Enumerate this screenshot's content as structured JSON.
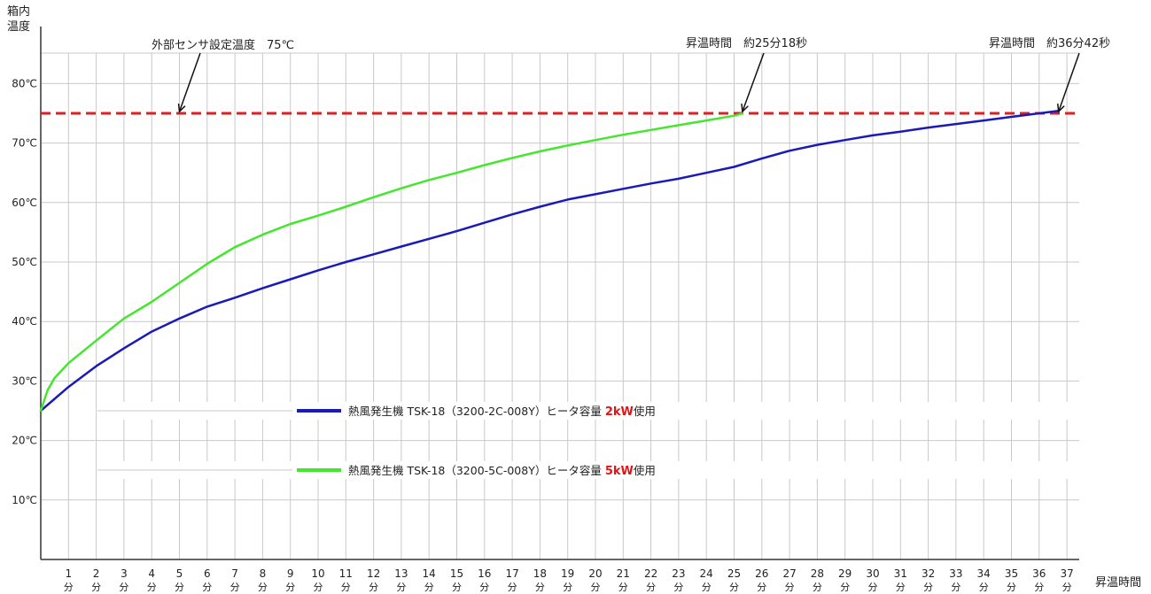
{
  "chart_data": {
    "type": "line",
    "ylabel_lines": [
      "箱内",
      "温度"
    ],
    "xlabel": "昇温時間",
    "y_unit": "℃",
    "x_unit": "分",
    "xlim": [
      0,
      37.5
    ],
    "ylim": [
      0,
      85
    ],
    "y_ticks": [
      10,
      20,
      30,
      40,
      50,
      60,
      70,
      80
    ],
    "y_tick_labels": [
      "10℃",
      "20℃",
      "30℃",
      "40℃",
      "50℃",
      "60℃",
      "70℃",
      "80℃"
    ],
    "x_ticks": [
      1,
      2,
      3,
      4,
      5,
      6,
      7,
      8,
      9,
      10,
      11,
      12,
      13,
      14,
      15,
      16,
      17,
      18,
      19,
      20,
      21,
      22,
      23,
      24,
      25,
      26,
      27,
      28,
      29,
      30,
      31,
      32,
      33,
      34,
      35,
      36,
      37
    ],
    "grid": true,
    "reference_line": {
      "y": 75,
      "color": "#e02020",
      "style": "dashed"
    },
    "annotations": [
      {
        "text": "外部センサ設定温度　75℃",
        "points_to": [
          5,
          75
        ]
      },
      {
        "text": "昇温時間　約25分18秒",
        "points_to": [
          25.3,
          75
        ]
      },
      {
        "text": "昇温時間　約36分42秒",
        "points_to": [
          36.7,
          75
        ]
      }
    ],
    "series": [
      {
        "label_prefix": "熱風発生機 TSK-18（3200-2C-008Y）ヒータ容量 ",
        "label_power": "2kW",
        "label_suffix": "使用",
        "color": "#1a1ab8",
        "x": [
          0,
          1,
          2,
          3,
          4,
          5,
          6,
          7,
          8,
          9,
          10,
          11,
          12,
          13,
          14,
          15,
          16,
          17,
          18,
          19,
          20,
          21,
          22,
          23,
          24,
          25,
          26,
          27,
          28,
          29,
          30,
          31,
          32,
          33,
          34,
          35,
          36,
          36.7
        ],
        "y": [
          25,
          29,
          32.5,
          35.5,
          38.3,
          40.5,
          42.5,
          44,
          45.6,
          47.1,
          48.6,
          50,
          51.3,
          52.6,
          53.9,
          55.2,
          56.6,
          58,
          59.3,
          60.5,
          61.4,
          62.3,
          63.2,
          64,
          65,
          66,
          67.4,
          68.7,
          69.7,
          70.5,
          71.3,
          71.9,
          72.6,
          73.2,
          73.8,
          74.4,
          75,
          75.4
        ]
      },
      {
        "label_prefix": "熱風発生機 TSK-18（3200-5C-008Y）ヒータ容量 ",
        "label_power": "5kW",
        "label_suffix": "使用",
        "color": "#44e62e",
        "x": [
          0,
          0.25,
          0.5,
          1,
          2,
          3,
          4,
          5,
          6,
          7,
          8,
          9,
          10,
          11,
          12,
          13,
          14,
          15,
          16,
          17,
          18,
          19,
          20,
          21,
          22,
          23,
          24,
          25,
          25.3
        ],
        "y": [
          25,
          28.5,
          30.5,
          33,
          36.8,
          40.5,
          43.3,
          46.5,
          49.7,
          52.5,
          54.6,
          56.4,
          57.8,
          59.3,
          60.9,
          62.4,
          63.8,
          65,
          66.3,
          67.5,
          68.6,
          69.6,
          70.5,
          71.4,
          72.2,
          73,
          73.8,
          74.6,
          75
        ]
      }
    ]
  }
}
